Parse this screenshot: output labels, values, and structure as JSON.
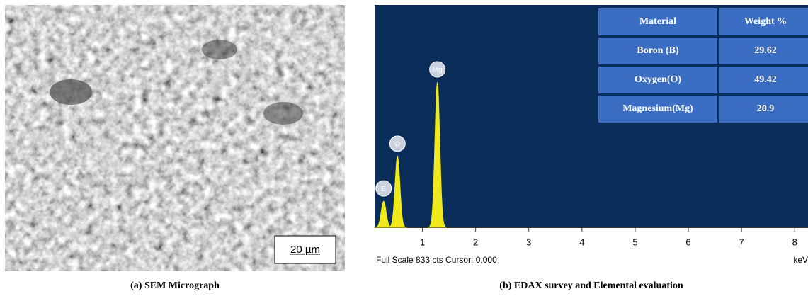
{
  "figure_a": {
    "scale_bar": "20 µm",
    "caption": "(a) SEM Micrograph"
  },
  "chart_data": {
    "type": "spectrum",
    "caption": "(b) EDAX survey and Elemental evaluation",
    "footer": "Full Scale 833 cts Cursor: 0.000",
    "x_unit": "keV",
    "peaks": [
      {
        "label": "B",
        "x": 0.27,
        "counts": 99
      },
      {
        "label": "O",
        "x": 0.53,
        "counts": 269
      },
      {
        "label": "Mg",
        "x": 1.28,
        "counts": 551
      }
    ],
    "color": "#f0ea1c",
    "background": "#0b2d5a",
    "xlim": [
      0.1,
      8.25
    ],
    "xticks": [
      1,
      2,
      3,
      4,
      5,
      6,
      7,
      8
    ],
    "ylim": [
      0,
      833
    ]
  },
  "table": {
    "header": [
      "Material",
      "Weight %"
    ],
    "rows": [
      [
        "Boron (B)",
        "29.62"
      ],
      [
        "Oxygen(O)",
        "49.42"
      ],
      [
        "Magnesium(Mg)",
        "20.9"
      ]
    ]
  }
}
